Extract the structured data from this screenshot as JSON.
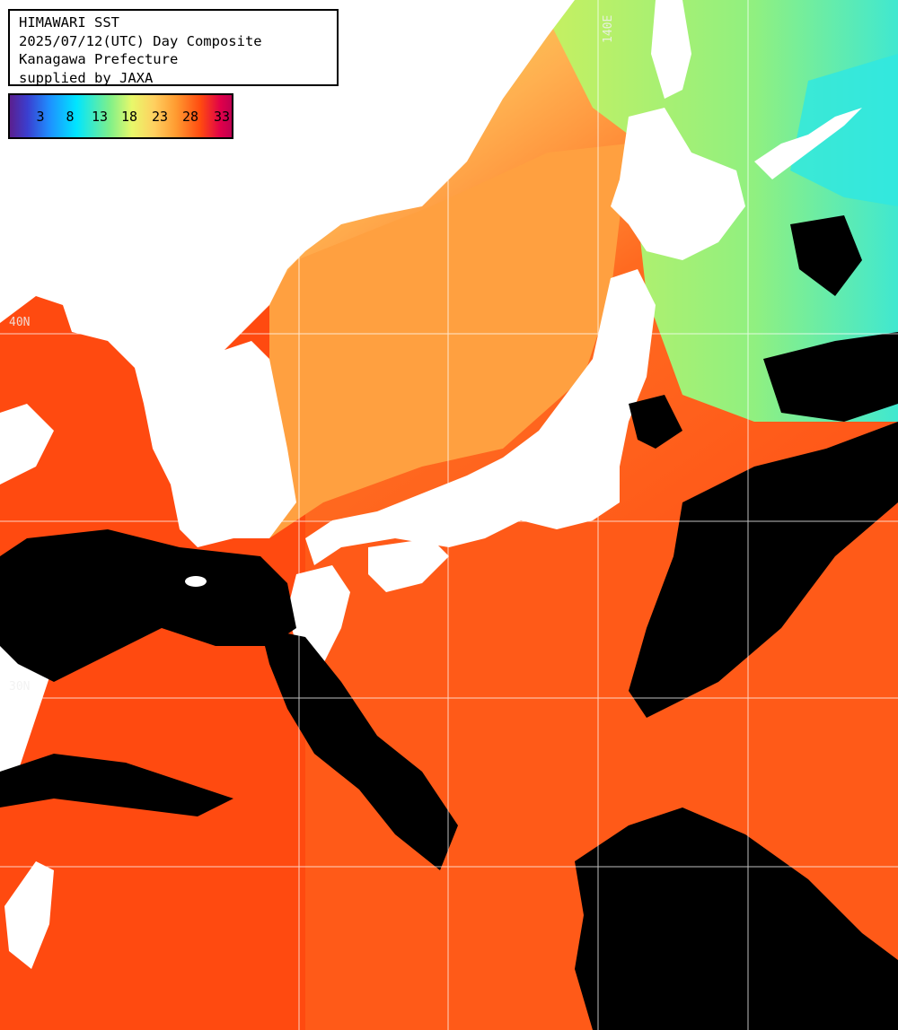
{
  "header": {
    "lines": [
      "HIMAWARI SST",
      "2025/07/12(UTC) Day Composite",
      "Kanagawa Prefecture",
      "supplied by JAXA"
    ]
  },
  "legend": {
    "ticks": [
      "3",
      "8",
      "13",
      "18",
      "23",
      "28",
      "33"
    ]
  },
  "grid": {
    "lat_labels": [
      "40N",
      "30N"
    ],
    "lon_labels": [
      "140E"
    ]
  },
  "colors": {
    "cloud": "#000000",
    "land": "#ffffff",
    "grid": "#ffffff",
    "warm": "#ff4a10",
    "mild": "#ffa040",
    "cool": "#c8f060",
    "cold": "#30e8e0"
  }
}
